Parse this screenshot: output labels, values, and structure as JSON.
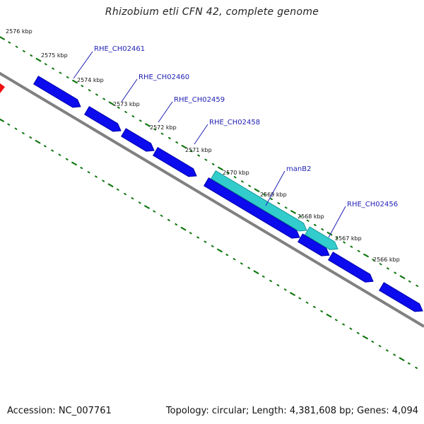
{
  "title": "Rhizobium etli CFN 42, complete genome",
  "footer": {
    "accession": "Accession: NC_007761",
    "stats": "Topology: circular; Length: 4,381,608 bp; Genes: 4,094"
  },
  "colors": {
    "backbone": "#808080",
    "gene_forward": "#0b0bee",
    "gene_highlight": "#33cccc",
    "gene_other_strand": "#ee1111",
    "tick_dots": "#117711",
    "label_text": "#1f1fb4"
  },
  "ticks": [
    "2576 kbp",
    "2575 kbp",
    "2574 kbp",
    "2573 kbp",
    "2572 kbp",
    "2571 kbp",
    "2570 kbp",
    "2569 kbp",
    "2568 kbp",
    "2567 kbp",
    "2566 kbp"
  ],
  "gene_labels": [
    "RHE_CH02461",
    "RHE_CH02460",
    "RHE_CH02459",
    "RHE_CH02458",
    "manB2",
    "RHE_CH02456"
  ]
}
